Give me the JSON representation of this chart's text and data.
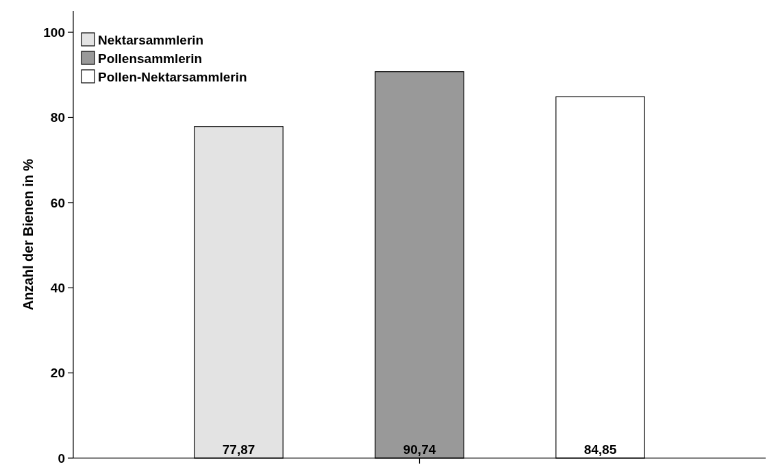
{
  "chart_data": {
    "type": "bar",
    "ylabel": "Anzahl der Bienen in %",
    "categories": [
      null
    ],
    "series": [
      {
        "name": "Nektarsammlerin",
        "color": "#e3e3e3",
        "values": [
          77.87
        ],
        "value_labels": [
          "77,87"
        ]
      },
      {
        "name": "Pollensammlerin",
        "color": "#999999",
        "values": [
          90.74
        ],
        "value_labels": [
          "90,74"
        ]
      },
      {
        "name": "Pollen-Nektarsammlerin",
        "color": "#ffffff",
        "values": [
          84.85
        ],
        "value_labels": [
          "84,85"
        ]
      }
    ],
    "ylim": [
      0,
      105
    ],
    "yticks": [
      0,
      20,
      40,
      60,
      80,
      100
    ],
    "grid": false,
    "legend": "top left"
  }
}
